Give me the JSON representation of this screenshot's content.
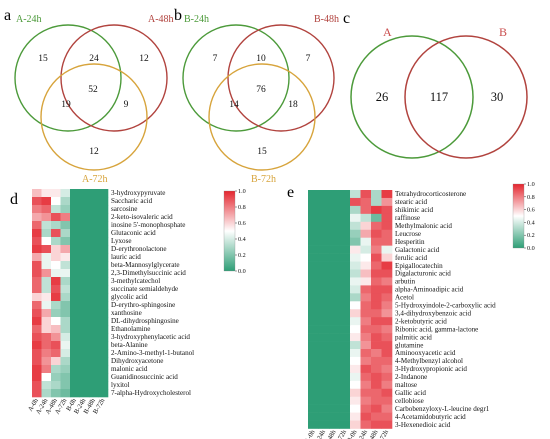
{
  "venn": {
    "a": {
      "panel_label": "a",
      "sets": [
        {
          "name": "A-24h",
          "color": "#4c9a3a"
        },
        {
          "name": "A-48h",
          "color": "#b1433e"
        },
        {
          "name": "A-72h",
          "color": "#d7a43c"
        }
      ],
      "regions": {
        "only_1": "15",
        "one_two": "24",
        "only_2": "12",
        "one_three": "19",
        "all": "52",
        "two_three": "9",
        "only_3": "12"
      }
    },
    "b": {
      "panel_label": "b",
      "sets": [
        {
          "name": "B-24h",
          "color": "#4c9a3a"
        },
        {
          "name": "B-48h",
          "color": "#b1433e"
        },
        {
          "name": "B-72h",
          "color": "#d7a43c"
        }
      ],
      "regions": {
        "only_1": "7",
        "one_two": "10",
        "only_2": "7",
        "one_three": "14",
        "all": "76",
        "two_three": "18",
        "only_3": "15"
      }
    },
    "c": {
      "panel_label": "c",
      "sets": [
        {
          "name": "A",
          "color": "#4c9a3a"
        },
        {
          "name": "B",
          "color": "#b1433e"
        }
      ],
      "regions": {
        "only_1": "26",
        "both": "117",
        "only_2": "30"
      }
    }
  },
  "heatmap_scale": {
    "low_color": "#2e9e76",
    "mid_color": "#ffffff",
    "high_color": "#e4262f",
    "ticks": [
      "1.0",
      "0.8",
      "0.6",
      "0.4",
      "0.2",
      "0.0"
    ]
  },
  "heatmap_d": {
    "panel_label": "d",
    "columns": [
      "A-0h",
      "A-24h",
      "A-48h",
      "A-72h",
      "B-0h",
      "B-24h",
      "B-48h",
      "B-72h"
    ],
    "rows": [
      {
        "name": "3-hydroxypyruvate",
        "values": [
          0.65,
          0.55,
          0.55,
          0.4,
          0,
          0,
          0,
          0
        ]
      },
      {
        "name": "Saccharic acid",
        "values": [
          0.9,
          0.95,
          0.5,
          0.3,
          0,
          0,
          0,
          0
        ]
      },
      {
        "name": "sarcosine",
        "values": [
          0.8,
          0.85,
          0.35,
          0.25,
          0,
          0,
          0,
          0
        ]
      },
      {
        "name": "2-keto-isovaleric acid",
        "values": [
          0.7,
          0.75,
          0.9,
          0.8,
          0,
          0,
          0,
          0
        ]
      },
      {
        "name": "inosine 5'-monophosphate",
        "values": [
          0.85,
          0.35,
          0.3,
          0.2,
          0,
          0,
          0,
          0
        ]
      },
      {
        "name": "Glutaconic acid",
        "values": [
          0.95,
          0.3,
          0.9,
          0.3,
          0,
          0,
          0,
          0
        ]
      },
      {
        "name": "Lyxose",
        "values": [
          0.9,
          0.5,
          0.3,
          0.2,
          0,
          0,
          0,
          0
        ]
      },
      {
        "name": "D-erythronolactone",
        "values": [
          0.95,
          0.9,
          0.6,
          0.7,
          0,
          0,
          0,
          0
        ]
      },
      {
        "name": "lauric acid",
        "values": [
          0.7,
          0.45,
          0.6,
          0.55,
          0,
          0,
          0,
          0
        ]
      },
      {
        "name": "beta-Mannosylglycerate",
        "values": [
          0.9,
          0.45,
          0.5,
          0.35,
          0,
          0,
          0,
          0
        ]
      },
      {
        "name": "2,3-Dimethylsuccinic acid",
        "values": [
          0.9,
          0.75,
          0.45,
          0.45,
          0,
          0,
          0,
          0
        ]
      },
      {
        "name": "3-methylcatechol",
        "values": [
          0.85,
          0.35,
          0.95,
          0.3,
          0,
          0,
          0,
          0
        ]
      },
      {
        "name": "succinate semialdehyde",
        "values": [
          0.85,
          0.35,
          0.9,
          0.35,
          0,
          0,
          0,
          0
        ]
      },
      {
        "name": "glycolic acid",
        "values": [
          0.6,
          0.55,
          0.95,
          0.3,
          0,
          0,
          0,
          0
        ]
      },
      {
        "name": "D-erythro-sphingosine",
        "values": [
          0.85,
          0.45,
          0.3,
          0.2,
          0,
          0,
          0,
          0
        ]
      },
      {
        "name": "xanthosine",
        "values": [
          0.9,
          0.7,
          0.25,
          0.2,
          0,
          0,
          0,
          0
        ]
      },
      {
        "name": "DL-dihydrosphingosine",
        "values": [
          0.95,
          0.6,
          0.5,
          0.3,
          0,
          0,
          0,
          0
        ]
      },
      {
        "name": "Ethanolamine",
        "values": [
          0.85,
          0.6,
          0.65,
          0.3,
          0,
          0,
          0,
          0
        ]
      },
      {
        "name": "3-hydroxyphenylacetic acid",
        "values": [
          0.9,
          0.85,
          0.75,
          0.4,
          0,
          0,
          0,
          0
        ]
      },
      {
        "name": "beta-Alanine",
        "values": [
          0.95,
          0.85,
          0.9,
          0.45,
          0,
          0,
          0,
          0
        ]
      },
      {
        "name": "2-Amino-3-methyl-1-butanol",
        "values": [
          0.9,
          0.8,
          0.85,
          0.4,
          0,
          0,
          0,
          0
        ]
      },
      {
        "name": "Dihydroxyacetone",
        "values": [
          0.9,
          0.75,
          0.6,
          0.3,
          0,
          0,
          0,
          0
        ]
      },
      {
        "name": "malonic acid",
        "values": [
          0.95,
          0.8,
          0.3,
          0.25,
          0,
          0,
          0,
          0
        ]
      },
      {
        "name": "Guanidinosuccinic acid",
        "values": [
          0.95,
          0.5,
          0.25,
          0.2,
          0,
          0,
          0,
          0
        ]
      },
      {
        "name": "lyxitol",
        "values": [
          0.9,
          0.35,
          0.3,
          0.2,
          0,
          0,
          0,
          0
        ]
      },
      {
        "name": "7-alpha-Hydroxycholesterol",
        "values": [
          0.9,
          0.3,
          0.2,
          0.15,
          0,
          0,
          0,
          0
        ]
      }
    ]
  },
  "heatmap_e": {
    "panel_label": "e",
    "columns": [
      "A-0h",
      "A-24h",
      "A-48h",
      "A-72h",
      "B-0h",
      "B-24h",
      "B-48h",
      "B-72h"
    ],
    "rows": [
      {
        "name": "Tetrahydrocorticosterone",
        "values": [
          0,
          0,
          0,
          0,
          0.35,
          0.9,
          0.3,
          0.95
        ]
      },
      {
        "name": "stearic acid",
        "values": [
          0,
          0,
          0,
          0,
          0.9,
          0.85,
          0.3,
          0.75
        ]
      },
      {
        "name": "shikimic acid",
        "values": [
          0,
          0,
          0,
          0,
          0.3,
          0.85,
          0.95,
          0.9
        ]
      },
      {
        "name": "raffinose",
        "values": [
          0,
          0,
          0,
          0,
          0.45,
          0.35,
          0.15,
          0.9
        ]
      },
      {
        "name": "Methylmalonic acid",
        "values": [
          0,
          0,
          0,
          0,
          0.35,
          0.6,
          0.85,
          0.9
        ]
      },
      {
        "name": "Leucrose",
        "values": [
          0,
          0,
          0,
          0,
          0.25,
          0.7,
          0.9,
          0.85
        ]
      },
      {
        "name": "Hesperitin",
        "values": [
          0,
          0,
          0,
          0,
          0.2,
          0.45,
          0.85,
          0.85
        ]
      },
      {
        "name": "Galactonic acid",
        "values": [
          0,
          0,
          0,
          0,
          0.55,
          0.4,
          0.8,
          0.45
        ]
      },
      {
        "name": "ferulic acid",
        "values": [
          0,
          0,
          0,
          0,
          0.45,
          0.5,
          0.9,
          0.6
        ]
      },
      {
        "name": "Epigallocatechin",
        "values": [
          0,
          0,
          0,
          0,
          0.4,
          0.55,
          0.85,
          0.95
        ]
      },
      {
        "name": "Digalacturonic acid",
        "values": [
          0,
          0,
          0,
          0,
          0.35,
          0.65,
          0.9,
          0.9
        ]
      },
      {
        "name": "arbutin",
        "values": [
          0,
          0,
          0,
          0,
          0.45,
          0.55,
          0.85,
          0.8
        ]
      },
      {
        "name": "alpha-Aminoadipic acid",
        "values": [
          0,
          0,
          0,
          0,
          0.4,
          0.85,
          0.9,
          0.9
        ]
      },
      {
        "name": "Acetol",
        "values": [
          0,
          0,
          0,
          0,
          0.3,
          0.8,
          0.9,
          0.85
        ]
      },
      {
        "name": "5-Hydroxyindole-2-carboxylic acid",
        "values": [
          0,
          0,
          0,
          0,
          0.5,
          0.85,
          0.9,
          0.8
        ]
      },
      {
        "name": "3,4-dihydroxybenzoic acid",
        "values": [
          0,
          0,
          0,
          0,
          0.6,
          0.85,
          0.85,
          0.75
        ]
      },
      {
        "name": "2-ketobutyric acid",
        "values": [
          0,
          0,
          0,
          0,
          0.45,
          0.8,
          0.9,
          0.9
        ]
      },
      {
        "name": "Ribonic acid, gamma-lactone",
        "values": [
          0,
          0,
          0,
          0,
          0.5,
          0.85,
          0.85,
          0.8
        ]
      },
      {
        "name": "palmitic acid",
        "values": [
          0,
          0,
          0,
          0,
          0.55,
          0.8,
          0.9,
          0.85
        ]
      },
      {
        "name": "glutamine",
        "values": [
          0,
          0,
          0,
          0,
          0.35,
          0.75,
          0.9,
          0.9
        ]
      },
      {
        "name": "Aminooxyacetic acid",
        "values": [
          0,
          0,
          0,
          0,
          0.45,
          0.85,
          0.8,
          0.9
        ]
      },
      {
        "name": "4-Methylbenzyl alcohol",
        "values": [
          0,
          0,
          0,
          0,
          0.5,
          0.8,
          0.85,
          0.85
        ]
      },
      {
        "name": "3-Hydroxypropionic acid",
        "values": [
          0,
          0,
          0,
          0,
          0.55,
          0.9,
          0.85,
          0.8
        ]
      },
      {
        "name": "2-Indanone",
        "values": [
          0,
          0,
          0,
          0,
          0.45,
          0.85,
          0.9,
          0.85
        ]
      },
      {
        "name": "maltose",
        "values": [
          0,
          0,
          0,
          0,
          0.5,
          0.8,
          0.9,
          0.8
        ]
      },
      {
        "name": "Gallic acid",
        "values": [
          0,
          0,
          0,
          0,
          0.6,
          0.85,
          0.85,
          0.9
        ]
      },
      {
        "name": "cellobiose",
        "values": [
          0,
          0,
          0,
          0,
          0.55,
          0.8,
          0.85,
          0.85
        ]
      },
      {
        "name": "Carbobenzyloxy-L-leucine degr1",
        "values": [
          0,
          0,
          0,
          0,
          0.5,
          0.85,
          0.9,
          0.8
        ]
      },
      {
        "name": "4-Acetamidobutyric acid",
        "values": [
          0,
          0,
          0,
          0,
          0.55,
          0.9,
          0.85,
          0.85
        ]
      },
      {
        "name": "3-Hexenedioic acid",
        "values": [
          0,
          0,
          0,
          0,
          0.6,
          0.85,
          0.9,
          0.9
        ]
      }
    ]
  }
}
